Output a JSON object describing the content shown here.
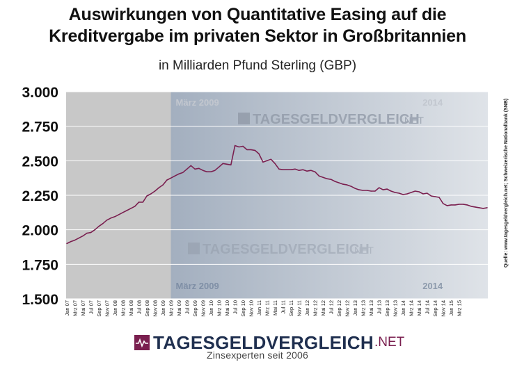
{
  "title_line1": "Auswirkungen von Quantitative Easing auf die",
  "title_line2": "Kreditvergabe im privaten Sektor in Großbritannien",
  "subtitle": "in Milliarden Pfund Sterling (GBP)",
  "source": "Quelle: www.tagesgeldvergleich.net; Schweizerische Nationalbank (SNB)",
  "watermark": {
    "word": "TAGESGELDVERGLEICH",
    "tld": ".NET"
  },
  "logo": {
    "word": "TAGESGELDVERGLEICH",
    "tld": ".NET"
  },
  "tagline": "Zinsexperten seit 2006",
  "colors": {
    "line": "#7a1f4f",
    "plot_bg": "#c8c8c8",
    "qe_band": "#a6b3c4",
    "brand_dark": "#1f2f4f"
  },
  "chart_data": {
    "type": "line",
    "title": "Auswirkungen von Quantitative Easing auf die Kreditvergabe im privaten Sektor in Großbritannien",
    "subtitle": "in Milliarden Pfund Sterling (GBP)",
    "xlabel": "",
    "ylabel": "",
    "ylim": [
      1500,
      3000
    ],
    "yticks": [
      1500,
      1750,
      2000,
      2250,
      2500,
      2750,
      3000
    ],
    "ytick_labels": [
      "1.500",
      "1.750",
      "2.000",
      "2.250",
      "2.500",
      "2.750",
      "3.000"
    ],
    "xtick_labels": [
      "Jan 07",
      "Mrz 07",
      "Mai 07",
      "Jul 07",
      "Sep 07",
      "Nov 07",
      "Jan 08",
      "Mrz 08",
      "Mai 08",
      "Jul 08",
      "Sep 08",
      "Nov 08",
      "Jan 09",
      "Mrz 09",
      "Mai 09",
      "Jul 09",
      "Sep 09",
      "Nov 09",
      "Jan 10",
      "Mrz 10",
      "Mai 10",
      "Jul 10",
      "Sep 10",
      "Nov 10",
      "Jan 11",
      "Mrz 11",
      "Mai 11",
      "Jul 11",
      "Sep 11",
      "Nov 11",
      "Jan 12",
      "Mrz 12",
      "Mai 12",
      "Jul 12",
      "Sep 12",
      "Nov 12",
      "Jan 13",
      "Mrz 13",
      "Mai 13",
      "Jul 13",
      "Sep 13",
      "Nov 13",
      "Jan 14",
      "Mrz 14",
      "Mai 14",
      "Jul 14",
      "Sep 14",
      "Nov 14",
      "Jan 15",
      "Mrz 15"
    ],
    "annotations": [
      {
        "text": "März 2009",
        "x": "Mrz 09"
      },
      {
        "text": "2014",
        "x": "Jan 14"
      }
    ],
    "series": [
      {
        "values": [
          1900,
          1915,
          1925,
          1940,
          1955,
          1975,
          1980,
          2000,
          2025,
          2045,
          2070,
          2085,
          2095,
          2110,
          2125,
          2140,
          2155,
          2170,
          2200,
          2200,
          2245,
          2260,
          2280,
          2305,
          2325,
          2360,
          2375,
          2390,
          2405,
          2415,
          2440,
          2465,
          2440,
          2445,
          2430,
          2420,
          2420,
          2430,
          2455,
          2480,
          2475,
          2470,
          2610,
          2600,
          2605,
          2580,
          2580,
          2575,
          2550,
          2490,
          2500,
          2510,
          2480,
          2440,
          2435,
          2435,
          2435,
          2440,
          2430,
          2435,
          2425,
          2430,
          2420,
          2390,
          2380,
          2370,
          2365,
          2350,
          2340,
          2330,
          2325,
          2315,
          2300,
          2290,
          2285,
          2285,
          2280,
          2280,
          2305,
          2290,
          2295,
          2280,
          2270,
          2265,
          2255,
          2260,
          2270,
          2280,
          2275,
          2260,
          2265,
          2245,
          2240,
          2235,
          2190,
          2175,
          2180,
          2180,
          2185,
          2185,
          2180,
          2170,
          2165,
          2160,
          2155,
          2160
        ]
      }
    ]
  }
}
